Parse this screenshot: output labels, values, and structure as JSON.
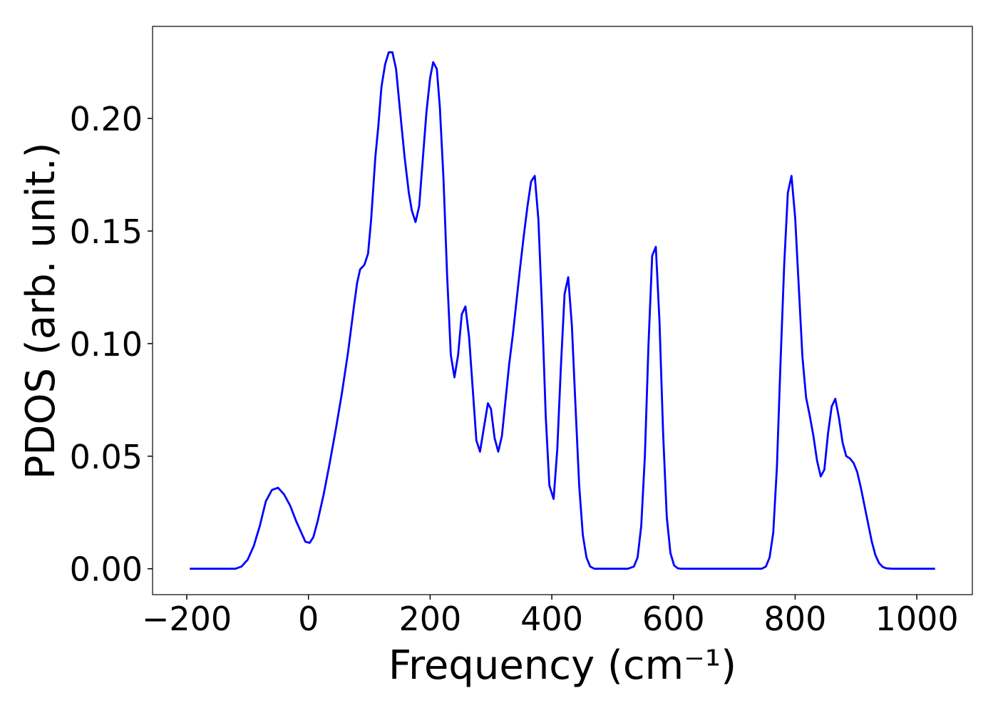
{
  "chart_data": {
    "type": "line",
    "x_label": "Frequency (cm⁻¹)",
    "y_label": "PDOS (arb. unit.)",
    "xlim": [
      -256.25,
      1091.25
    ],
    "ylim": [
      -0.0115,
      0.2409
    ],
    "xticks": [
      {
        "value": -200,
        "label": "−200"
      },
      0,
      200,
      400,
      600,
      800,
      1000
    ],
    "yticks": [
      {
        "value": 0,
        "label": "0.00"
      },
      0.05,
      {
        "value": 0.1,
        "label": "0.10"
      },
      0.15,
      {
        "value": 0.2,
        "label": "0.20"
      }
    ],
    "x": [
      -195,
      -120,
      -110,
      -100,
      -90,
      -80,
      -70,
      -60,
      -50,
      -40,
      -30,
      -20,
      -10,
      -5,
      2,
      8,
      15,
      25,
      35,
      45,
      55,
      65,
      75,
      80,
      85,
      92,
      98,
      103,
      110,
      115,
      120,
      126,
      132,
      138,
      144,
      150,
      158,
      165,
      170,
      176,
      182,
      188,
      194,
      200,
      205,
      211,
      216,
      222,
      228,
      234,
      240,
      246,
      252,
      258,
      264,
      270,
      276,
      282,
      288,
      295,
      300,
      306,
      312,
      318,
      324,
      330,
      336,
      342,
      348,
      354,
      360,
      366,
      372,
      378,
      384,
      390,
      396,
      403,
      409,
      415,
      421,
      427,
      433,
      439,
      445,
      451,
      457,
      463,
      470,
      525,
      535,
      541,
      547,
      553,
      559,
      565,
      571,
      577,
      583,
      589,
      595,
      601,
      607,
      613,
      745,
      752,
      758,
      764,
      770,
      776,
      782,
      788,
      794,
      800,
      806,
      812,
      818,
      824,
      830,
      836,
      842,
      848,
      854,
      860,
      866,
      872,
      878,
      884,
      890,
      896,
      902,
      908,
      914,
      920,
      926,
      932,
      938,
      944,
      950,
      960,
      1030
    ],
    "series": [
      {
        "name": "PDOS",
        "color": "#0000ff",
        "values": [
          0,
          0,
          0.001,
          0.004,
          0.01,
          0.019,
          0.03,
          0.035,
          0.036,
          0.033,
          0.028,
          0.021,
          0.015,
          0.012,
          0.0115,
          0.014,
          0.021,
          0.033,
          0.047,
          0.062,
          0.078,
          0.096,
          0.117,
          0.127,
          0.133,
          0.135,
          0.14,
          0.155,
          0.183,
          0.197,
          0.214,
          0.224,
          0.2294,
          0.2294,
          0.222,
          0.205,
          0.183,
          0.167,
          0.159,
          0.154,
          0.161,
          0.182,
          0.203,
          0.218,
          0.225,
          0.222,
          0.205,
          0.173,
          0.13,
          0.095,
          0.085,
          0.095,
          0.113,
          0.1165,
          0.103,
          0.08,
          0.057,
          0.052,
          0.062,
          0.0735,
          0.071,
          0.058,
          0.052,
          0.059,
          0.075,
          0.091,
          0.104,
          0.119,
          0.134,
          0.148,
          0.161,
          0.172,
          0.1745,
          0.155,
          0.115,
          0.068,
          0.037,
          0.031,
          0.053,
          0.09,
          0.122,
          0.1295,
          0.108,
          0.072,
          0.037,
          0.015,
          0.005,
          0.001,
          0,
          0,
          0.001,
          0.005,
          0.019,
          0.05,
          0.1,
          0.139,
          0.143,
          0.11,
          0.06,
          0.023,
          0.007,
          0.0015,
          0.0002,
          0,
          0,
          0.001,
          0.005,
          0.016,
          0.045,
          0.092,
          0.135,
          0.167,
          0.1745,
          0.156,
          0.125,
          0.094,
          0.076,
          0.068,
          0.059,
          0.048,
          0.041,
          0.044,
          0.06,
          0.072,
          0.0755,
          0.067,
          0.056,
          0.05,
          0.049,
          0.047,
          0.043,
          0.036,
          0.028,
          0.02,
          0.012,
          0.006,
          0.0025,
          0.0008,
          0.0002,
          0,
          0
        ]
      }
    ]
  }
}
